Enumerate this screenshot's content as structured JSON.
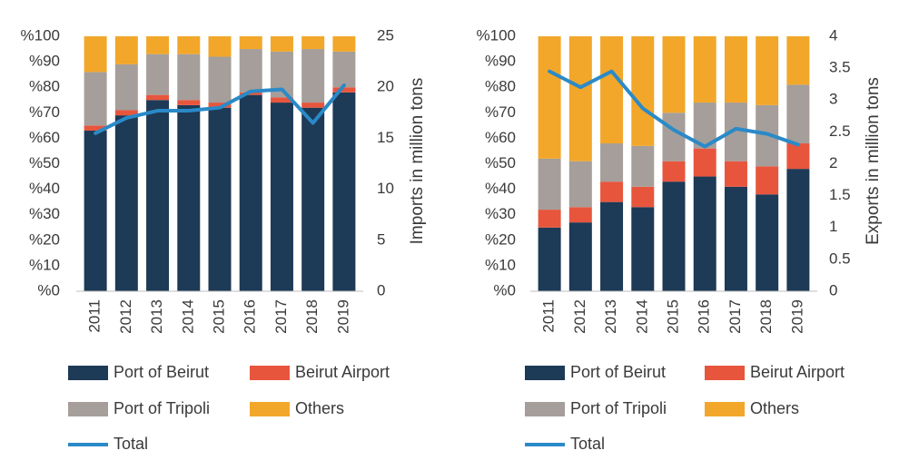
{
  "colors": {
    "port_of_beirut": "#1d3a56",
    "beirut_airport": "#e8553d",
    "port_of_tripoli": "#a59e9a",
    "others": "#f2a72a",
    "total": "#2a8ac8"
  },
  "chart_data": [
    {
      "type": "bar",
      "stacked": true,
      "title": "",
      "categories": [
        "2011",
        "2012",
        "2013",
        "2014",
        "2015",
        "2016",
        "2017",
        "2018",
        "2019"
      ],
      "ylabel": "",
      "ylim": [
        0,
        100
      ],
      "yticks": [
        "%0",
        "%10",
        "%20",
        "%30",
        "%40",
        "%50",
        "%60",
        "%70",
        "%80",
        "%90",
        "%100"
      ],
      "y2label": "Imports in million tons",
      "y2lim": [
        0,
        25
      ],
      "y2ticks": [
        "0",
        "5",
        "10",
        "15",
        "20",
        "25"
      ],
      "series": [
        {
          "name": "Port of Beirut",
          "color_key": "port_of_beirut",
          "values": [
            63,
            69,
            75,
            73,
            72,
            77,
            74,
            72,
            78
          ]
        },
        {
          "name": "Beirut Airport",
          "color_key": "beirut_airport",
          "values": [
            2,
            2,
            2,
            2,
            2,
            1,
            2,
            2,
            2
          ]
        },
        {
          "name": "Port of Tripoli",
          "color_key": "port_of_tripoli",
          "values": [
            21,
            18,
            16,
            18,
            18,
            17,
            18,
            21,
            14
          ]
        },
        {
          "name": "Others",
          "color_key": "others",
          "values": [
            14,
            11,
            7,
            7,
            8,
            5,
            6,
            5,
            6
          ]
        }
      ],
      "line": {
        "name": "Total",
        "color_key": "total",
        "axis": "right",
        "values": [
          15.5,
          17.0,
          17.7,
          17.7,
          18.0,
          19.6,
          19.8,
          16.5,
          20.2
        ]
      },
      "legend": [
        "Port of Beirut",
        "Beirut Airport",
        "Port of Tripoli",
        "Others",
        "Total"
      ]
    },
    {
      "type": "bar",
      "stacked": true,
      "title": "",
      "categories": [
        "2011",
        "2012",
        "2013",
        "2014",
        "2015",
        "2016",
        "2017",
        "2018",
        "2019"
      ],
      "ylabel": "",
      "ylim": [
        0,
        100
      ],
      "yticks": [
        "%0",
        "%10",
        "%20",
        "%30",
        "%40",
        "%50",
        "%60",
        "%70",
        "%80",
        "%90",
        "%100"
      ],
      "y2label": "Exports in million tons",
      "y2lim": [
        0,
        4
      ],
      "y2ticks": [
        "0",
        "0.5",
        "1",
        "1.5",
        "2",
        "2.5",
        "3",
        "3.5",
        "4"
      ],
      "series": [
        {
          "name": "Port of Beirut",
          "color_key": "port_of_beirut",
          "values": [
            25,
            27,
            35,
            33,
            43,
            45,
            41,
            38,
            48
          ]
        },
        {
          "name": "Beirut Airport",
          "color_key": "beirut_airport",
          "values": [
            7,
            6,
            8,
            8,
            8,
            11,
            10,
            11,
            10
          ]
        },
        {
          "name": "Port of Tripoli",
          "color_key": "port_of_tripoli",
          "values": [
            20,
            18,
            15,
            16,
            19,
            18,
            23,
            24,
            23
          ]
        },
        {
          "name": "Others",
          "color_key": "others",
          "values": [
            48,
            49,
            42,
            43,
            30,
            26,
            26,
            27,
            19
          ]
        }
      ],
      "line": {
        "name": "Total",
        "color_key": "total",
        "axis": "right",
        "values": [
          3.45,
          3.2,
          3.45,
          2.87,
          2.53,
          2.27,
          2.55,
          2.47,
          2.3
        ]
      },
      "legend": [
        "Port of Beirut",
        "Beirut Airport",
        "Port of Tripoli",
        "Others",
        "Total"
      ]
    }
  ]
}
